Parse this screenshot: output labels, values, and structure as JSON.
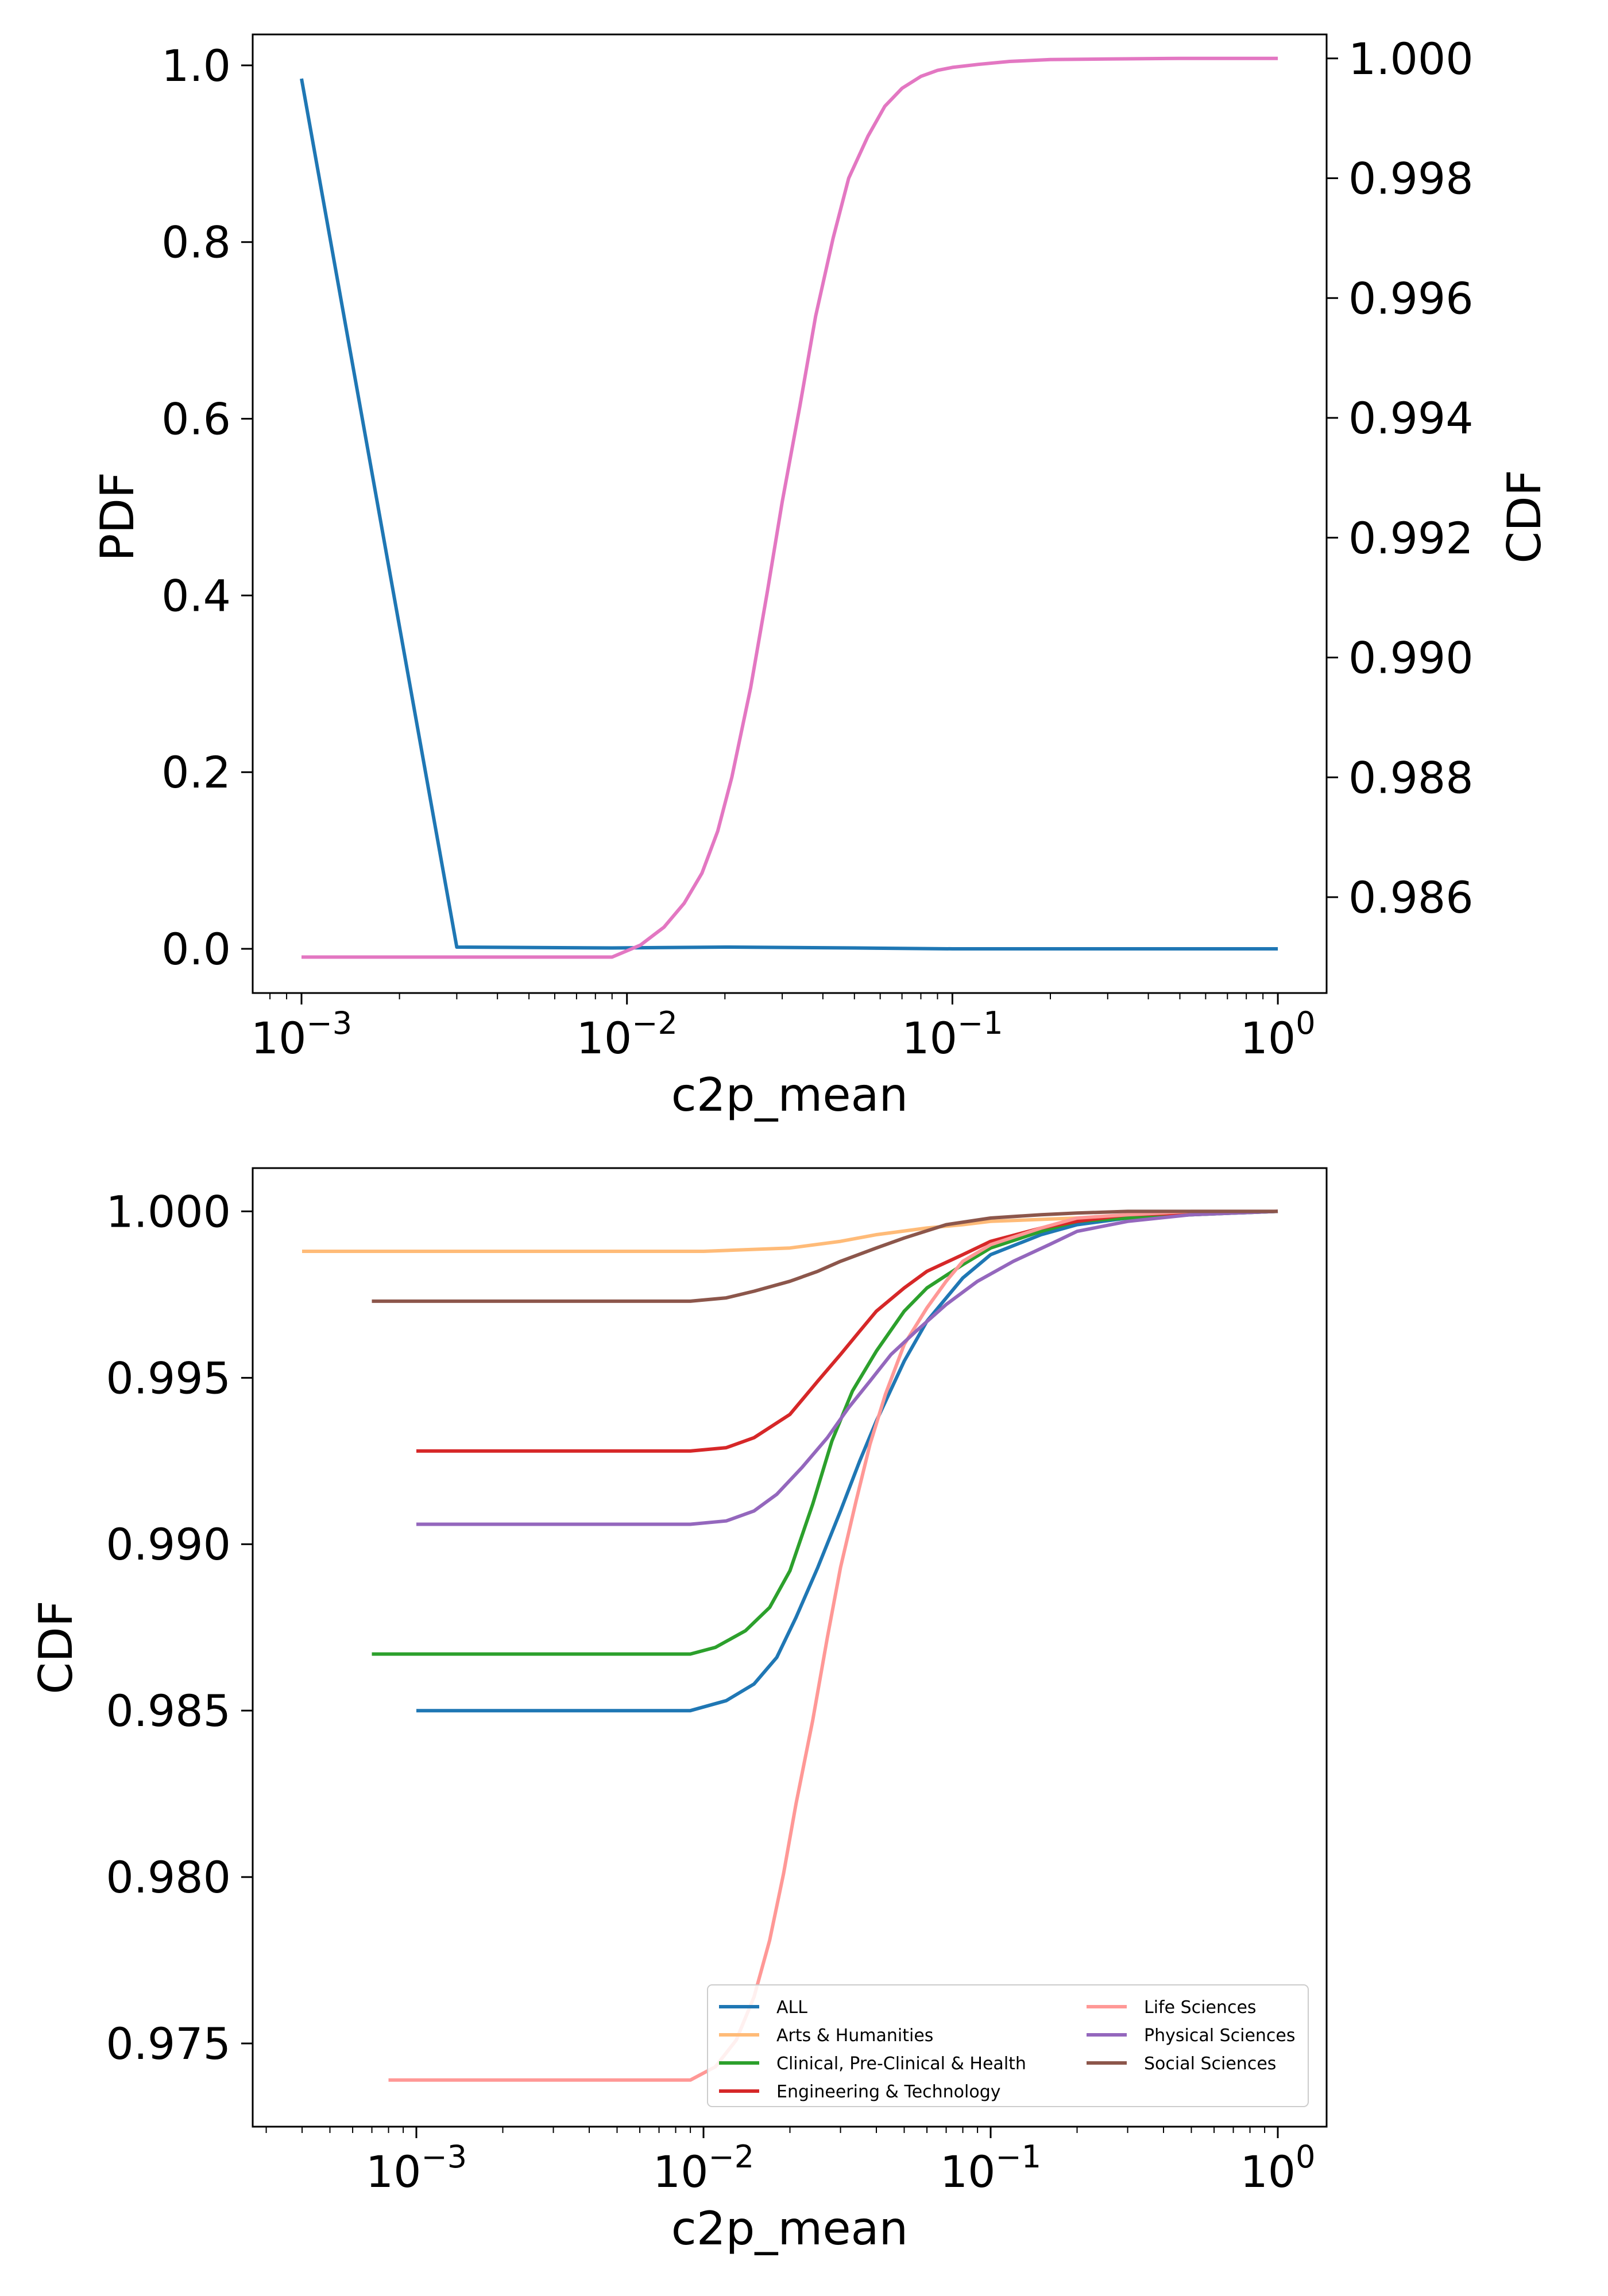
{
  "chart_data": [
    {
      "type": "line",
      "xlabel": "c2p_mean",
      "x_scale": "log",
      "x_ticks": [
        "10^-3",
        "10^-2",
        "10^-1",
        "10^0"
      ],
      "left_axis": {
        "label": "PDF",
        "color": "#1f77b4",
        "ylim": [
          -0.05,
          1.035
        ],
        "ticks": [
          "0.0",
          "0.2",
          "0.4",
          "0.6",
          "0.8",
          "1.0"
        ]
      },
      "right_axis": {
        "label": "CDF",
        "color": "#e377c2",
        "ylim": [
          0.9844,
          1.0004
        ],
        "ticks": [
          "0.986",
          "0.988",
          "0.990",
          "0.992",
          "0.994",
          "0.996",
          "0.998",
          "1.000"
        ]
      },
      "series": [
        {
          "name": "PDF",
          "axis": "left",
          "color": "#1f77b4",
          "x": [
            0.001,
            0.003,
            0.009,
            0.02,
            0.05,
            0.1,
            1.0
          ],
          "y": [
            0.985,
            0.002,
            0.001,
            0.002,
            0.001,
            0.0,
            0.0
          ]
        },
        {
          "name": "CDF",
          "axis": "right",
          "color": "#e377c2",
          "x": [
            0.001,
            0.003,
            0.009,
            0.011,
            0.013,
            0.015,
            0.017,
            0.019,
            0.021,
            0.024,
            0.027,
            0.03,
            0.034,
            0.038,
            0.043,
            0.048,
            0.055,
            0.062,
            0.07,
            0.08,
            0.09,
            0.1,
            0.12,
            0.15,
            0.2,
            0.3,
            0.5,
            1.0
          ],
          "y": [
            0.985,
            0.985,
            0.985,
            0.9852,
            0.9855,
            0.9859,
            0.9864,
            0.9871,
            0.988,
            0.9895,
            0.9911,
            0.9926,
            0.9942,
            0.9957,
            0.997,
            0.998,
            0.9987,
            0.9992,
            0.9995,
            0.9997,
            0.9998,
            0.99985,
            0.9999,
            0.99995,
            0.99998,
            0.99999,
            1.0,
            1.0
          ]
        }
      ]
    },
    {
      "type": "line",
      "xlabel": "c2p_mean",
      "ylabel": "CDF",
      "x_scale": "log",
      "x_ticks": [
        "10^-3",
        "10^-2",
        "10^-1",
        "10^0"
      ],
      "ylim": [
        0.9725,
        1.0013
      ],
      "y_ticks": [
        "0.975",
        "0.980",
        "0.985",
        "0.990",
        "0.995",
        "1.000"
      ],
      "legend_loc": "lower right",
      "series": [
        {
          "name": "ALL",
          "color": "#1f77b4",
          "x": [
            0.001,
            0.009,
            0.012,
            0.015,
            0.018,
            0.021,
            0.025,
            0.03,
            0.035,
            0.04,
            0.05,
            0.06,
            0.08,
            0.1,
            0.15,
            0.2,
            0.3,
            0.5,
            1.0
          ],
          "y": [
            0.985,
            0.985,
            0.9853,
            0.9858,
            0.9866,
            0.9878,
            0.9893,
            0.991,
            0.9925,
            0.9937,
            0.9955,
            0.9967,
            0.998,
            0.9987,
            0.9993,
            0.9996,
            0.9998,
            0.9999,
            1.0
          ]
        },
        {
          "name": "Arts & Humanities",
          "color": "#ffbb78",
          "x": [
            0.0004,
            0.001,
            0.01,
            0.02,
            0.03,
            0.04,
            0.06,
            0.08,
            0.1,
            0.2,
            0.5,
            1.0
          ],
          "y": [
            0.9988,
            0.9988,
            0.9988,
            0.9989,
            0.9991,
            0.9993,
            0.9995,
            0.9996,
            0.9997,
            0.9998,
            0.99995,
            1.0
          ]
        },
        {
          "name": "Clinical, Pre-Clinical & Health",
          "color": "#2ca02c",
          "x": [
            0.0007,
            0.001,
            0.009,
            0.011,
            0.014,
            0.017,
            0.02,
            0.024,
            0.028,
            0.033,
            0.04,
            0.05,
            0.06,
            0.08,
            0.1,
            0.15,
            0.2,
            0.3,
            0.5,
            1.0
          ],
          "y": [
            0.9867,
            0.9867,
            0.9867,
            0.9869,
            0.9874,
            0.9881,
            0.9892,
            0.9912,
            0.9931,
            0.9946,
            0.9958,
            0.997,
            0.9977,
            0.9984,
            0.9989,
            0.9994,
            0.9997,
            0.9998,
            0.9999,
            1.0
          ]
        },
        {
          "name": "Engineering & Technology",
          "color": "#d62728",
          "x": [
            0.001,
            0.009,
            0.012,
            0.015,
            0.02,
            0.025,
            0.03,
            0.035,
            0.04,
            0.05,
            0.06,
            0.08,
            0.1,
            0.15,
            0.2,
            0.3,
            0.5,
            1.0
          ],
          "y": [
            0.9928,
            0.9928,
            0.9929,
            0.9932,
            0.9939,
            0.9949,
            0.9957,
            0.9964,
            0.997,
            0.9977,
            0.9982,
            0.9987,
            0.9991,
            0.9995,
            0.9997,
            0.9999,
            0.99995,
            1.0
          ]
        },
        {
          "name": "Life Sciences",
          "color": "#ff9896",
          "x": [
            0.0008,
            0.001,
            0.009,
            0.011,
            0.013,
            0.015,
            0.017,
            0.019,
            0.021,
            0.024,
            0.027,
            0.03,
            0.034,
            0.038,
            0.043,
            0.05,
            0.06,
            0.07,
            0.08,
            0.1,
            0.15,
            0.2,
            0.3,
            0.5,
            1.0
          ],
          "y": [
            0.9739,
            0.9739,
            0.9739,
            0.9743,
            0.9751,
            0.9764,
            0.9781,
            0.9801,
            0.9822,
            0.9847,
            0.9872,
            0.9893,
            0.9913,
            0.993,
            0.9945,
            0.996,
            0.9971,
            0.9979,
            0.9985,
            0.999,
            0.9995,
            0.9998,
            0.9999,
            1.0,
            1.0
          ]
        },
        {
          "name": "Physical Sciences",
          "color": "#9467bd",
          "x": [
            0.001,
            0.009,
            0.012,
            0.015,
            0.018,
            0.022,
            0.027,
            0.032,
            0.038,
            0.045,
            0.055,
            0.07,
            0.09,
            0.12,
            0.16,
            0.2,
            0.3,
            0.5,
            1.0
          ],
          "y": [
            0.9906,
            0.9906,
            0.9907,
            0.991,
            0.9915,
            0.9923,
            0.9932,
            0.9941,
            0.9949,
            0.9957,
            0.9964,
            0.9972,
            0.9979,
            0.9985,
            0.999,
            0.9994,
            0.9997,
            0.9999,
            1.0
          ]
        },
        {
          "name": "Social Sciences",
          "color": "#8c564b",
          "x": [
            0.0007,
            0.001,
            0.009,
            0.012,
            0.015,
            0.02,
            0.025,
            0.03,
            0.04,
            0.05,
            0.07,
            0.1,
            0.15,
            0.2,
            0.3,
            0.5,
            1.0
          ],
          "y": [
            0.9973,
            0.9973,
            0.9973,
            0.9974,
            0.9976,
            0.9979,
            0.9982,
            0.9985,
            0.9989,
            0.9992,
            0.9996,
            0.9998,
            0.9999,
            0.99995,
            1.0,
            1.0,
            1.0
          ]
        }
      ]
    }
  ]
}
